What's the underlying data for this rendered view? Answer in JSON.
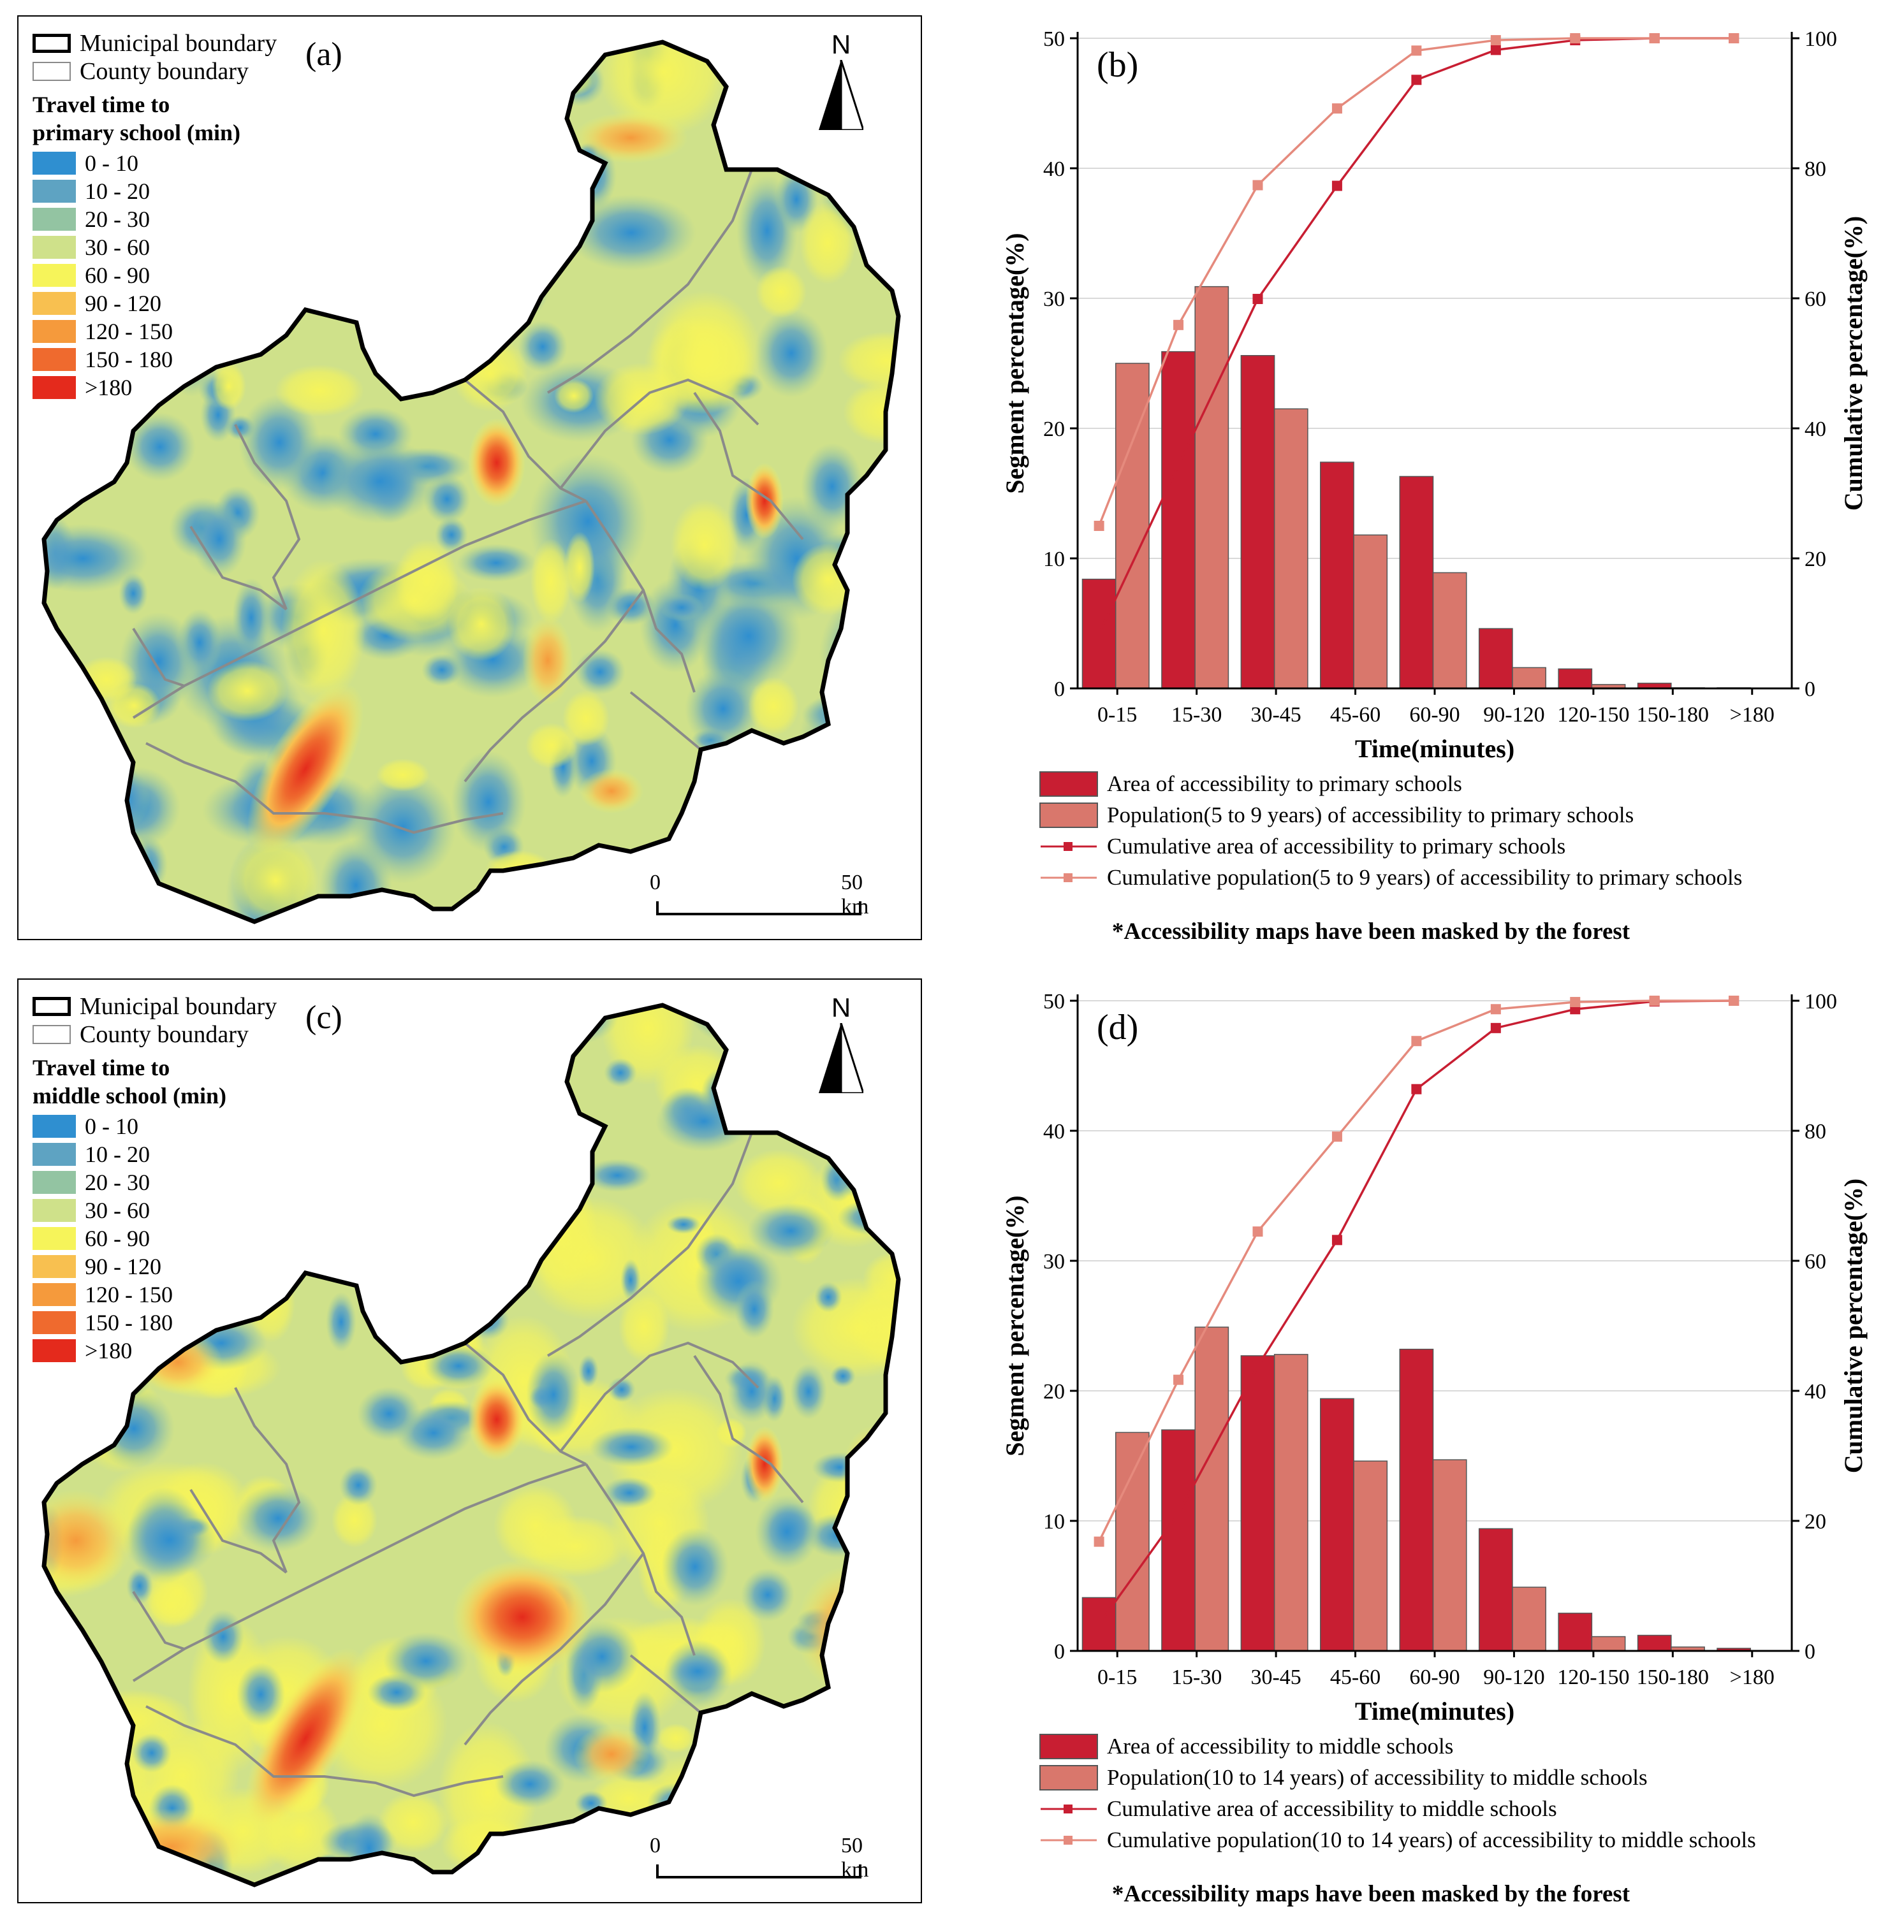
{
  "colors": {
    "bar_area": "#c81e32",
    "bar_pop": "#d9776c",
    "line_area": "#c81e32",
    "line_pop": "#e58a7d",
    "county_line": "#8a8a8a",
    "municipal_line": "#000000"
  },
  "legend_common": {
    "municipal": "Municipal boundary",
    "county": "County boundary",
    "classes": [
      {
        "label": "0 - 10",
        "color": "#2f8fd0"
      },
      {
        "label": "10 - 20",
        "color": "#5ea3c2"
      },
      {
        "label": "20 - 30",
        "color": "#93c4a2"
      },
      {
        "label": "30 - 60",
        "color": "#cfe18a"
      },
      {
        "label": "60 - 90",
        "color": "#f6f45a"
      },
      {
        "label": "90 - 120",
        "color": "#f8c050"
      },
      {
        "label": "120 - 150",
        "color": "#f59a3c"
      },
      {
        "label": "150 - 180",
        "color": "#ef6a2e"
      },
      {
        "label": ">180",
        "color": "#e42a1c"
      }
    ]
  },
  "map_a": {
    "label": "(a)",
    "legend_title_line1": "Travel time to",
    "legend_title_line2": "primary school (min)",
    "north": "N",
    "scale_zero": "0",
    "scale_end": "50 km"
  },
  "map_c": {
    "label": "(c)",
    "legend_title_line1": "Travel time to",
    "legend_title_line2": "middle school (min)",
    "north": "N",
    "scale_zero": "0",
    "scale_end": "50 km"
  },
  "chart_data": [
    {
      "type": "bar",
      "panel": "(b)",
      "xlabel": "Time(minutes)",
      "ylabel": "Segment percentage(%)",
      "y2label": "Cumulative percentage(%)",
      "ylim": [
        0,
        50
      ],
      "y2lim": [
        0,
        100
      ],
      "yticks": [
        0,
        10,
        20,
        30,
        40,
        50
      ],
      "y2ticks": [
        0,
        20,
        40,
        60,
        80,
        100
      ],
      "categories": [
        "0-15",
        "15-30",
        "30-45",
        "45-60",
        "60-90",
        "90-120",
        "120-150",
        "150-180",
        ">180"
      ],
      "series": [
        {
          "name": "Area of accessibility to primary schools",
          "kind": "bar",
          "values": [
            8.4,
            25.9,
            25.6,
            17.4,
            16.3,
            4.6,
            1.5,
            0.4,
            0.05
          ]
        },
        {
          "name": "Population(5 to 9 years) of accessibility to primary schools",
          "kind": "bar",
          "values": [
            25.0,
            30.9,
            21.5,
            11.8,
            8.9,
            1.6,
            0.3,
            0.05,
            0.0
          ]
        },
        {
          "name": "Cumulative area of accessibility to primary schools",
          "kind": "line",
          "axis": "right",
          "values": [
            8.4,
            34.3,
            59.9,
            77.3,
            93.6,
            98.2,
            99.7,
            100.0,
            100.0
          ]
        },
        {
          "name": "Cumulative population(5 to 9 years) of accessibility to primary schools",
          "kind": "line",
          "axis": "right",
          "values": [
            25.0,
            55.9,
            77.4,
            89.2,
            98.1,
            99.7,
            100.0,
            100.0,
            100.0
          ]
        }
      ],
      "note": "*Accessibility maps have been masked by the forest"
    },
    {
      "type": "bar",
      "panel": "(d)",
      "xlabel": "Time(minutes)",
      "ylabel": "Segment percentage(%)",
      "y2label": "Cumulative percentage(%)",
      "ylim": [
        0,
        50
      ],
      "y2lim": [
        0,
        100
      ],
      "yticks": [
        0,
        10,
        20,
        30,
        40,
        50
      ],
      "y2ticks": [
        0,
        20,
        40,
        60,
        80,
        100
      ],
      "categories": [
        "0-15",
        "15-30",
        "30-45",
        "45-60",
        "60-90",
        "90-120",
        "120-150",
        "150-180",
        ">180"
      ],
      "series": [
        {
          "name": "Area of accessibility to middle schools",
          "kind": "bar",
          "values": [
            4.1,
            17.0,
            22.7,
            19.4,
            23.2,
            9.4,
            2.9,
            1.2,
            0.2
          ]
        },
        {
          "name": "Population(10 to 14 years) of accessibility to middle schools",
          "kind": "bar",
          "values": [
            16.8,
            24.9,
            22.8,
            14.6,
            14.7,
            4.9,
            1.1,
            0.3,
            0.0
          ]
        },
        {
          "name": "Cumulative area of accessibility to middle schools",
          "kind": "line",
          "axis": "right",
          "values": [
            4.1,
            21.1,
            43.8,
            63.2,
            86.4,
            95.8,
            98.7,
            99.9,
            100.0
          ]
        },
        {
          "name": "Cumulative population(10 to 14 years) of accessibility to middle schools",
          "kind": "line",
          "axis": "right",
          "values": [
            16.8,
            41.7,
            64.5,
            79.1,
            93.8,
            98.7,
            99.8,
            100.0,
            100.0
          ]
        }
      ],
      "note": "*Accessibility maps have been masked by the forest"
    }
  ]
}
